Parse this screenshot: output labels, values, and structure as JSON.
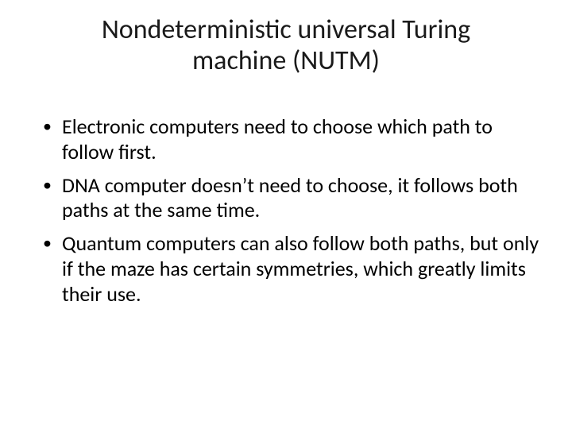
{
  "slide": {
    "title": "Nondeterministic universal Turing machine (NUTM)",
    "bullets": [
      "Electronic computers need to choose which path to follow first.",
      "DNA computer doesn’t need to choose, it follows both paths at the same time.",
      "Quantum computers can also follow both paths, but only if the maze has certain symmetries, which greatly limits their use."
    ],
    "title_fontsize": 34,
    "body_fontsize": 26,
    "background_color": "#ffffff",
    "text_color": "#000000",
    "title_color": "#1a1a1a"
  }
}
